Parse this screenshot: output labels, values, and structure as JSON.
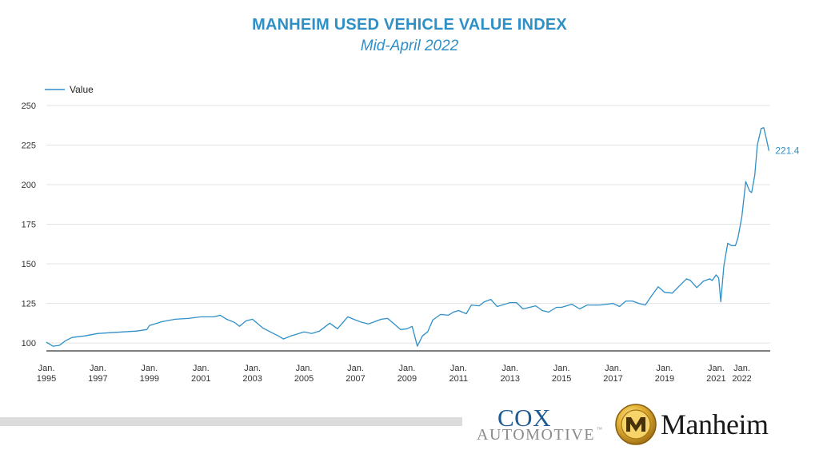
{
  "header": {
    "title": "MANHEIM USED VEHICLE VALUE INDEX",
    "subtitle": "Mid-April 2022"
  },
  "colors": {
    "title": "#2f8fc7",
    "line": "#2f8fc7",
    "grid": "#e3e3e3",
    "axis": "#333333"
  },
  "chart_data": {
    "type": "line",
    "title": "MANHEIM USED VEHICLE VALUE INDEX",
    "subtitle": "Mid-April 2022",
    "xlabel": "",
    "ylabel": "",
    "ylim": [
      95,
      250
    ],
    "y_ticks": [
      100,
      125,
      150,
      175,
      200,
      225,
      250
    ],
    "x_ticks": [
      {
        "x": 1995,
        "line1": "Jan.",
        "line2": "1995"
      },
      {
        "x": 1997,
        "line1": "Jan.",
        "line2": "1997"
      },
      {
        "x": 1999,
        "line1": "Jan.",
        "line2": "1999"
      },
      {
        "x": 2001,
        "line1": "Jan.",
        "line2": "2001"
      },
      {
        "x": 2003,
        "line1": "Jan.",
        "line2": "2003"
      },
      {
        "x": 2005,
        "line1": "Jan.",
        "line2": "2005"
      },
      {
        "x": 2007,
        "line1": "Jan.",
        "line2": "2007"
      },
      {
        "x": 2009,
        "line1": "Jan.",
        "line2": "2009"
      },
      {
        "x": 2011,
        "line1": "Jan.",
        "line2": "2011"
      },
      {
        "x": 2013,
        "line1": "Jan.",
        "line2": "2013"
      },
      {
        "x": 2015,
        "line1": "Jan.",
        "line2": "2015"
      },
      {
        "x": 2017,
        "line1": "Jan.",
        "line2": "2017"
      },
      {
        "x": 2019,
        "line1": "Jan.",
        "line2": "2019"
      },
      {
        "x": 2021,
        "line1": "Jan.",
        "line2": "2021"
      },
      {
        "x": 2022,
        "line1": "Jan.",
        "line2": "2022"
      }
    ],
    "legend": {
      "position": "top-left",
      "label": "Value"
    },
    "grid": true,
    "end_label": "221.4",
    "series": [
      {
        "name": "Value",
        "points": [
          [
            1995.0,
            100.5
          ],
          [
            1995.25,
            98.0
          ],
          [
            1995.5,
            98.5
          ],
          [
            1995.75,
            101.5
          ],
          [
            1996.0,
            103.5
          ],
          [
            1996.5,
            104.5
          ],
          [
            1997.0,
            106.0
          ],
          [
            1997.5,
            106.5
          ],
          [
            1998.0,
            107.0
          ],
          [
            1998.5,
            107.5
          ],
          [
            1998.9,
            108.5
          ],
          [
            1999.0,
            111.0
          ],
          [
            1999.5,
            113.5
          ],
          [
            2000.0,
            115.0
          ],
          [
            2000.5,
            115.5
          ],
          [
            2001.0,
            116.5
          ],
          [
            2001.5,
            116.5
          ],
          [
            2001.75,
            117.5
          ],
          [
            2002.0,
            115.0
          ],
          [
            2002.3,
            113.0
          ],
          [
            2002.5,
            110.5
          ],
          [
            2002.75,
            114.0
          ],
          [
            2003.0,
            115.0
          ],
          [
            2003.4,
            109.5
          ],
          [
            2003.75,
            106.5
          ],
          [
            2004.0,
            104.5
          ],
          [
            2004.2,
            102.5
          ],
          [
            2004.5,
            104.5
          ],
          [
            2005.0,
            107.0
          ],
          [
            2005.3,
            106.0
          ],
          [
            2005.6,
            107.5
          ],
          [
            2006.0,
            112.5
          ],
          [
            2006.3,
            109.0
          ],
          [
            2006.7,
            116.5
          ],
          [
            2007.0,
            114.5
          ],
          [
            2007.25,
            113.0
          ],
          [
            2007.5,
            112.0
          ],
          [
            2007.75,
            113.5
          ],
          [
            2008.0,
            115.0
          ],
          [
            2008.25,
            115.5
          ],
          [
            2008.5,
            112.0
          ],
          [
            2008.75,
            108.5
          ],
          [
            2009.0,
            109.0
          ],
          [
            2009.2,
            110.5
          ],
          [
            2009.4,
            98.0
          ],
          [
            2009.6,
            104.5
          ],
          [
            2009.8,
            107.0
          ],
          [
            2010.0,
            114.5
          ],
          [
            2010.3,
            118.0
          ],
          [
            2010.6,
            117.5
          ],
          [
            2010.8,
            119.5
          ],
          [
            2011.0,
            120.5
          ],
          [
            2011.3,
            118.5
          ],
          [
            2011.5,
            124.0
          ],
          [
            2011.8,
            123.5
          ],
          [
            2012.0,
            126.0
          ],
          [
            2012.25,
            127.5
          ],
          [
            2012.5,
            123.0
          ],
          [
            2013.0,
            125.5
          ],
          [
            2013.25,
            125.5
          ],
          [
            2013.5,
            121.5
          ],
          [
            2014.0,
            123.5
          ],
          [
            2014.25,
            120.5
          ],
          [
            2014.5,
            119.5
          ],
          [
            2014.8,
            122.5
          ],
          [
            2015.0,
            122.5
          ],
          [
            2015.4,
            124.5
          ],
          [
            2015.7,
            121.5
          ],
          [
            2016.0,
            124.0
          ],
          [
            2016.5,
            124.0
          ],
          [
            2017.0,
            125.0
          ],
          [
            2017.25,
            123.0
          ],
          [
            2017.5,
            126.5
          ],
          [
            2017.75,
            126.5
          ],
          [
            2018.0,
            125.0
          ],
          [
            2018.25,
            124.0
          ],
          [
            2018.5,
            130.0
          ],
          [
            2018.75,
            135.5
          ],
          [
            2019.0,
            132.0
          ],
          [
            2019.3,
            131.5
          ],
          [
            2019.6,
            136.5
          ],
          [
            2019.85,
            140.5
          ],
          [
            2020.0,
            139.5
          ],
          [
            2020.25,
            135.0
          ],
          [
            2020.5,
            139.0
          ],
          [
            2020.75,
            140.5
          ],
          [
            2020.85,
            139.5
          ],
          [
            2021.0,
            143.0
          ],
          [
            2021.1,
            141.0
          ],
          [
            2021.18,
            126.0
          ],
          [
            2021.3,
            148.5
          ],
          [
            2021.45,
            163.0
          ],
          [
            2021.6,
            161.5
          ],
          [
            2021.75,
            161.5
          ],
          [
            2021.85,
            166.5
          ],
          [
            2022.0,
            180.0
          ],
          [
            2022.15,
            202.0
          ],
          [
            2022.3,
            196.0
          ],
          [
            2022.38,
            195.0
          ],
          [
            2022.5,
            206.0
          ],
          [
            2022.6,
            225.0
          ],
          [
            2022.75,
            235.5
          ],
          [
            2022.85,
            236.0
          ],
          [
            2022.95,
            229.0
          ],
          [
            2023.05,
            221.4
          ]
        ]
      }
    ]
  },
  "footer": {
    "cox_top": "COX",
    "cox_bottom": "AUTOMOTIVE",
    "cox_tm": "™",
    "manheim_word": "Manheim"
  }
}
